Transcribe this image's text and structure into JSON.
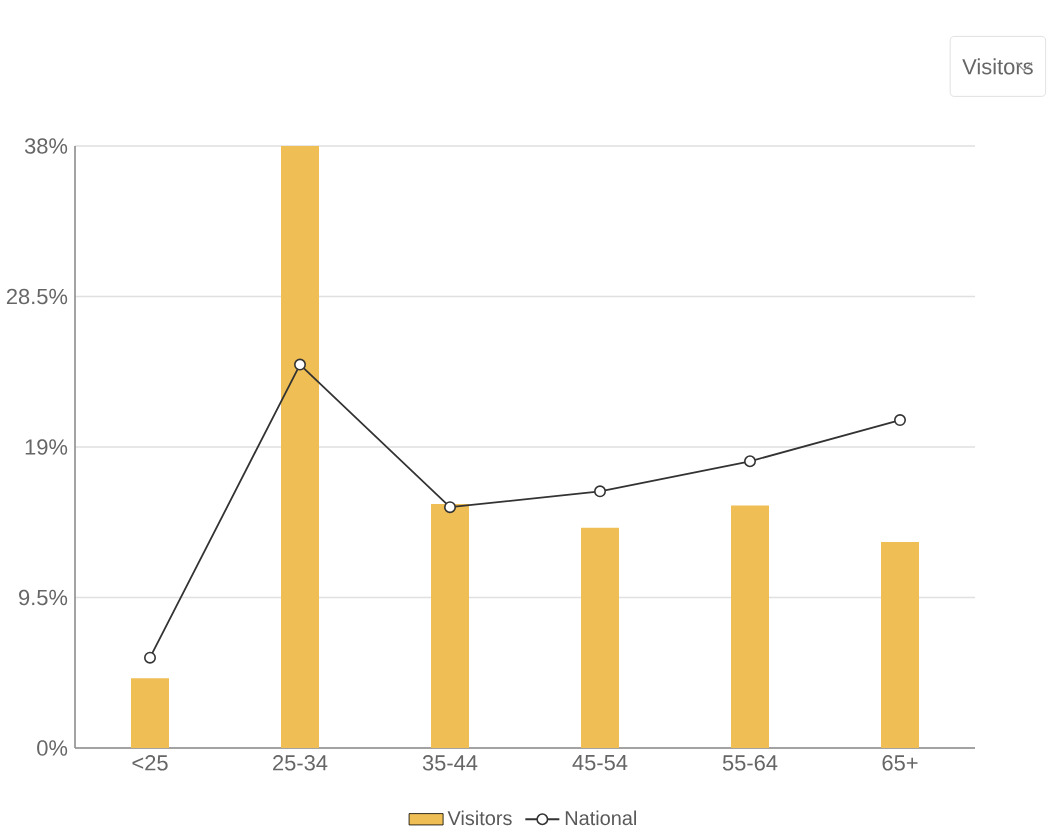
{
  "chart_data": {
    "type": "bar",
    "categories": [
      "<25",
      "25-34",
      "35-44",
      "45-54",
      "55-64",
      "65+"
    ],
    "series": [
      {
        "name": "Visitors",
        "color": "#efbe55",
        "values": [
          4.4,
          38,
          15.4,
          13.9,
          15.3,
          13.0
        ]
      },
      {
        "name": "National",
        "type": "line",
        "color": "#333333",
        "marker": "circle",
        "values": [
          5.7,
          24.2,
          15.2,
          16.2,
          18.1,
          20.7
        ]
      }
    ],
    "ylim": [
      0,
      38
    ],
    "yticks": [
      {
        "value": 0,
        "label": "0%"
      },
      {
        "value": 9.5,
        "label": "9.5%"
      },
      {
        "value": 19,
        "label": "19%"
      },
      {
        "value": 28.5,
        "label": "28.5%"
      },
      {
        "value": 38,
        "label": "38%"
      }
    ],
    "grid": "y",
    "legend": "bottom",
    "annotations": [
      "Visitors"
    ]
  }
}
